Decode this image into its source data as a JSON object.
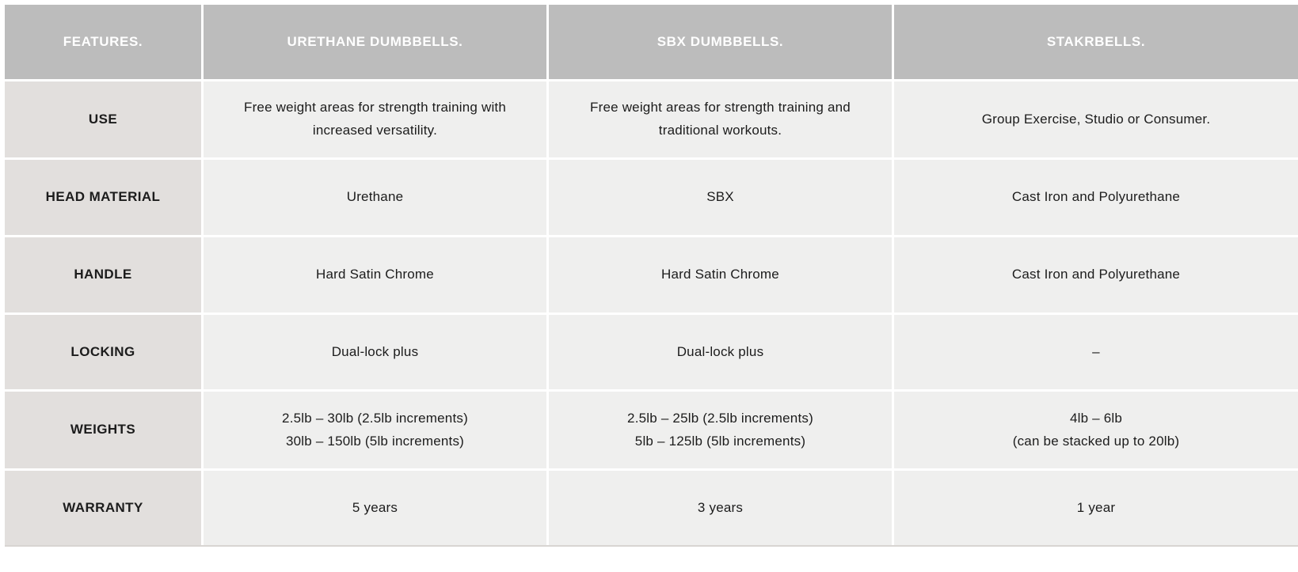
{
  "table": {
    "columns": [
      {
        "label": "FEATURES."
      },
      {
        "label": "URETHANE DUMBBELLS."
      },
      {
        "label": "SBX DUMBBELLS."
      },
      {
        "label": "STAKRBELLS."
      }
    ],
    "rows": [
      {
        "feature": "USE",
        "urethane": [
          "Free weight areas for strength training with",
          "increased versatility."
        ],
        "sbx": [
          "Free weight areas for strength training and",
          "traditional workouts."
        ],
        "stakrbells": "Group Exercise, Studio or Consumer."
      },
      {
        "feature": "HEAD MATERIAL",
        "urethane": "Urethane",
        "sbx": "SBX",
        "stakrbells": "Cast Iron and Polyurethane"
      },
      {
        "feature": "HANDLE",
        "urethane": "Hard Satin Chrome",
        "sbx": "Hard Satin Chrome",
        "stakrbells": "Cast Iron and Polyurethane"
      },
      {
        "feature": "LOCKING",
        "urethane": "Dual-lock plus",
        "sbx": "Dual-lock plus",
        "stakrbells": "–"
      },
      {
        "feature": "WEIGHTS",
        "urethane": [
          "2.5lb – 30lb (2.5lb increments)",
          "30lb – 150lb (5lb increments)"
        ],
        "sbx": [
          "2.5lb – 25lb (2.5lb increments)",
          "5lb – 125lb (5lb increments)"
        ],
        "stakrbells": [
          "4lb – 6lb",
          "(can be stacked up to 20lb)"
        ]
      },
      {
        "feature": "WARRANTY",
        "urethane": "5 years",
        "sbx": "3 years",
        "stakrbells": "1 year"
      }
    ]
  },
  "colors": {
    "header_background": "#bcbcbc",
    "header_text": "#ffffff",
    "feature_column_background": "#e2dfdd",
    "value_cell_background": "#efefee",
    "body_text": "#1c1c1c",
    "gridline": "#ffffff",
    "bottom_border": "#d8d5d2"
  }
}
